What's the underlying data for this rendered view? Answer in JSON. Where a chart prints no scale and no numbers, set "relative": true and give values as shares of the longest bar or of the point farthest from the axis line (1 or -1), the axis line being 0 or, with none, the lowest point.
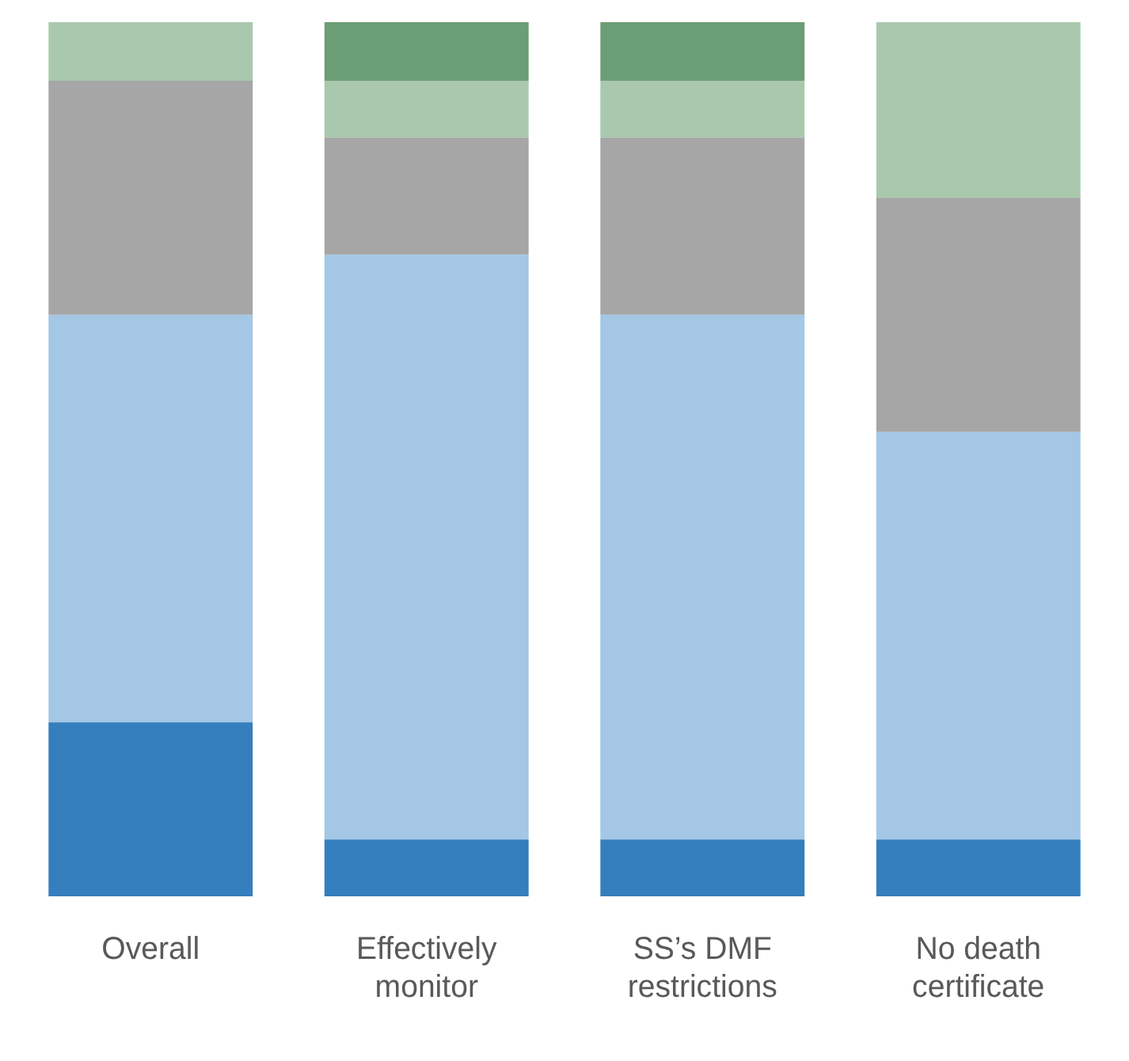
{
  "chart_data": {
    "type": "bar",
    "relative": true,
    "stacked": true,
    "legend": false,
    "grid": false,
    "categories": [
      "Overall",
      "Effectively monitor",
      "SS’s DMF restrictions",
      "No death certificate"
    ],
    "series": [
      {
        "color": "#357ebd",
        "values": [
          0.199,
          0.065,
          0.065,
          0.065
        ]
      },
      {
        "color": "#a3c7e5",
        "values": [
          0.466,
          0.669,
          0.6,
          0.466
        ]
      },
      {
        "color": "#a6a6a6",
        "values": [
          0.268,
          0.134,
          0.203,
          0.268
        ]
      },
      {
        "color": "#a9c8ad",
        "values": [
          0.067,
          0.065,
          0.065,
          0.201
        ]
      },
      {
        "color": "#6b9e74",
        "values": [
          0,
          0.067,
          0.067,
          0
        ]
      }
    ]
  }
}
